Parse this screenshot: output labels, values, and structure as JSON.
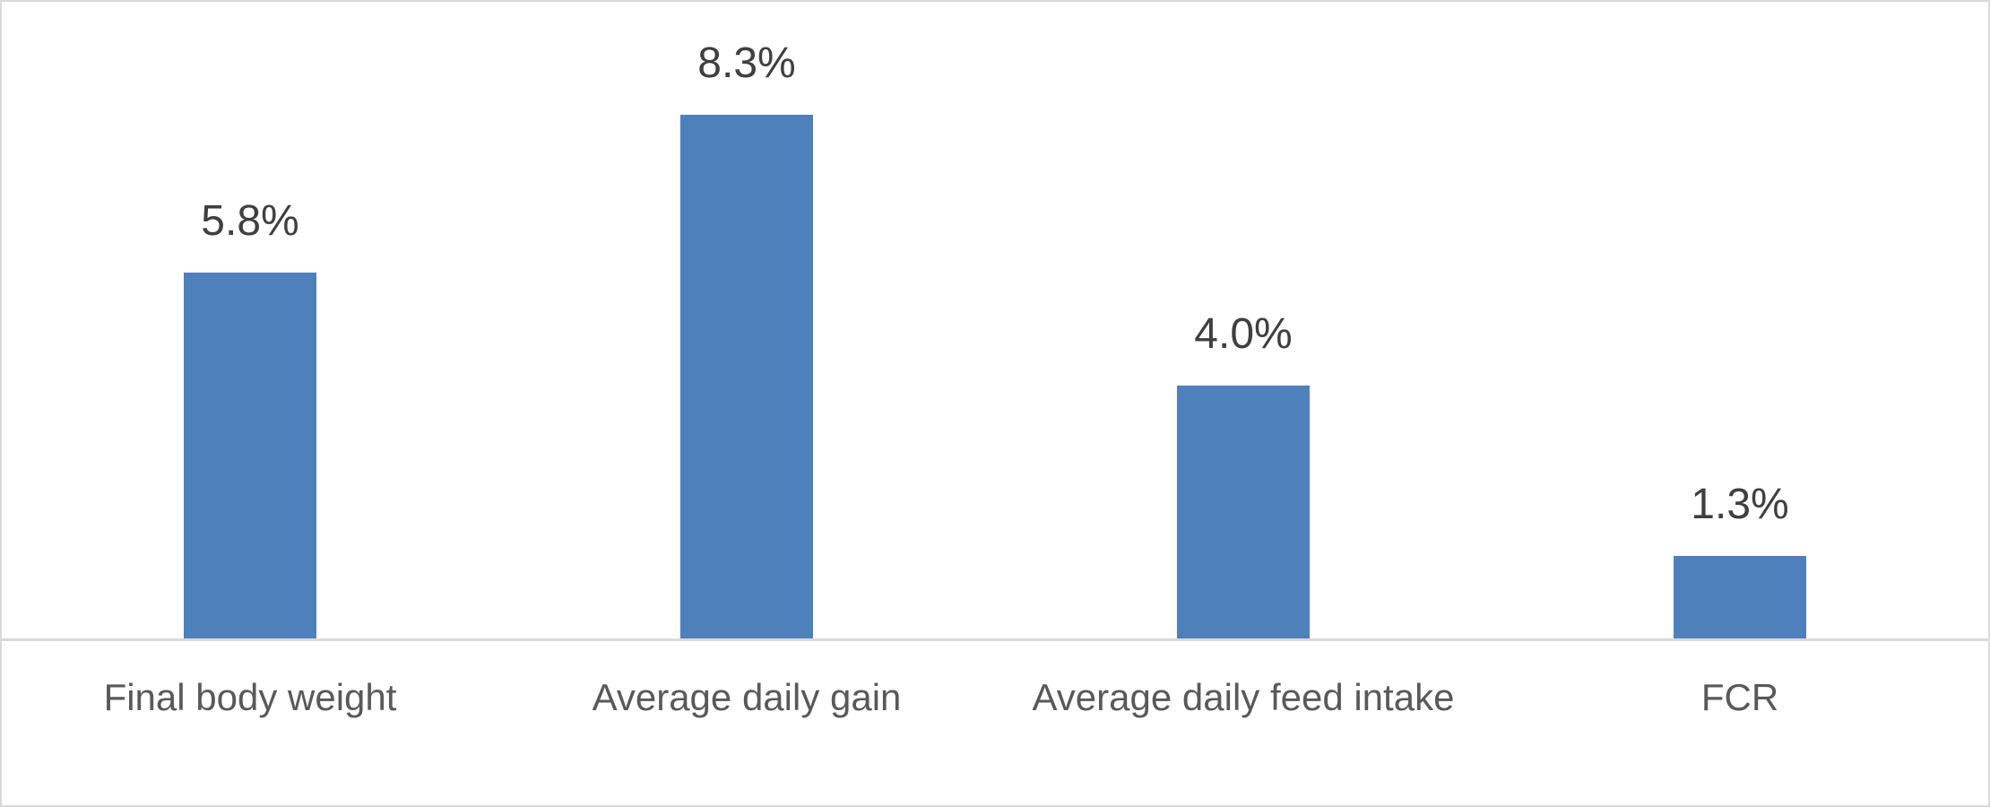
{
  "chart_data": {
    "type": "bar",
    "categories": [
      "Final body weight",
      "Average daily gain",
      "Average daily feed intake",
      "FCR"
    ],
    "values": [
      5.8,
      8.3,
      4.0,
      1.3
    ],
    "value_labels": [
      "5.8%",
      "8.3%",
      "4.0%",
      "1.3%"
    ],
    "title": "",
    "xlabel": "",
    "ylabel": "",
    "ylim": [
      0,
      10
    ],
    "grid": false,
    "legend": false,
    "data_labels_position": "above-bars",
    "colors": {
      "bar": "#4E80BC",
      "data_label": "#3F3F3F",
      "category_label": "#595959",
      "axis_line": "#D9D9D9",
      "frame_border": "#D9D9D9",
      "background": "#FFFFFF"
    }
  }
}
